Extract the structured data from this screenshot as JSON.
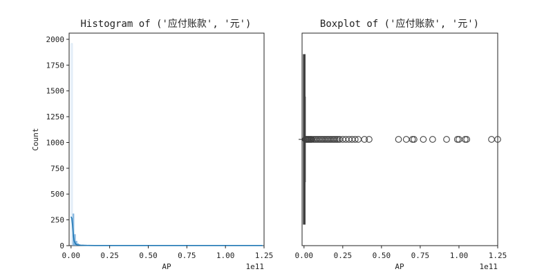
{
  "chart_data": [
    {
      "type": "histogram",
      "title": "Histogram of ('应付账款', '元')",
      "xlabel": "AP",
      "ylabel": "Count",
      "x_offset_label": "1e11",
      "xlim": [
        -0.0125,
        1.25
      ],
      "ylim": [
        0,
        2060
      ],
      "xticks": [
        0.0,
        0.25,
        0.5,
        0.75,
        1.0,
        1.25
      ],
      "xtick_labels": [
        "0.00",
        "0.25",
        "0.50",
        "0.75",
        "1.00",
        "1.25"
      ],
      "yticks": [
        0,
        250,
        500,
        750,
        1000,
        1250,
        1500,
        1750,
        2000
      ],
      "ytick_labels": [
        "0",
        "250",
        "500",
        "750",
        "1000",
        "1250",
        "1500",
        "1750",
        "2000"
      ],
      "bins": {
        "x": [
          0.0,
          0.01,
          0.02,
          0.03,
          0.04,
          0.05,
          0.06,
          0.08,
          0.1,
          0.15,
          0.25,
          0.5,
          1.0,
          1.24
        ],
        "counts": [
          1960,
          310,
          110,
          45,
          22,
          12,
          8,
          6,
          4,
          3,
          2,
          1,
          1,
          1
        ]
      },
      "kde": {
        "x": [
          0.0,
          0.005,
          0.01,
          0.015,
          0.02,
          0.03,
          0.04,
          0.06,
          0.08,
          0.1,
          0.15,
          0.2,
          0.3,
          0.5,
          0.75,
          1.0,
          1.24
        ],
        "y": [
          280,
          265,
          190,
          95,
          45,
          15,
          7,
          4,
          3,
          2,
          1,
          1,
          1,
          1,
          1,
          1,
          1
        ]
      },
      "colors": {
        "bar": "#5a9bd4",
        "kde": "#1f77b4"
      }
    },
    {
      "type": "boxplot",
      "title": "Boxplot of ('应付账款', '元')",
      "xlabel": "AP",
      "x_offset_label": "1e11",
      "xlim": [
        -0.0125,
        1.25
      ],
      "xticks": [
        0.0,
        0.25,
        0.5,
        0.75,
        1.0,
        1.25
      ],
      "xtick_labels": [
        "0.00",
        "0.25",
        "0.50",
        "0.75",
        "1.00",
        "1.25"
      ],
      "box": {
        "q1": 0.0,
        "median": 0.0,
        "q3": 0.003,
        "whisker_low": 0.0,
        "whisker_high": 0.008
      },
      "outliers": [
        0.01,
        0.015,
        0.02,
        0.025,
        0.03,
        0.035,
        0.04,
        0.045,
        0.05,
        0.06,
        0.07,
        0.08,
        0.09,
        0.1,
        0.11,
        0.12,
        0.13,
        0.14,
        0.15,
        0.16,
        0.17,
        0.18,
        0.19,
        0.2,
        0.21,
        0.22,
        0.23,
        0.25,
        0.27,
        0.29,
        0.31,
        0.33,
        0.35,
        0.39,
        0.42,
        0.61,
        0.66,
        0.7,
        0.71,
        0.77,
        0.83,
        0.92,
        0.99,
        1.0,
        1.04,
        1.05,
        1.21,
        1.25
      ],
      "colors": {
        "box": "#3f3f3f",
        "outlier_edge": "#3f3f3f"
      }
    }
  ]
}
